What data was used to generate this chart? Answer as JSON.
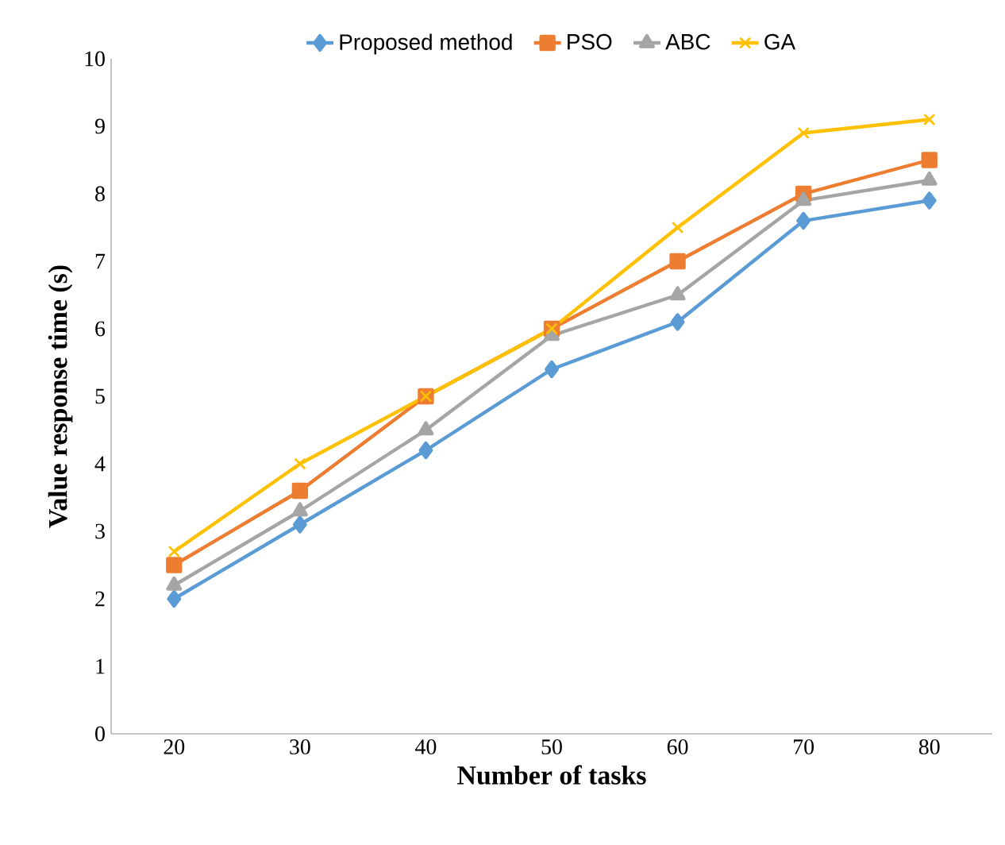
{
  "chart_data": {
    "type": "line",
    "xlabel": "Number of tasks",
    "ylabel": "Value response time (s)",
    "categories": [
      "20",
      "30",
      "40",
      "50",
      "60",
      "70",
      "80"
    ],
    "series": [
      {
        "name": "Proposed method",
        "color": "#5b9bd5",
        "marker": "diamond",
        "values": [
          2.0,
          3.1,
          4.2,
          5.4,
          6.1,
          7.6,
          7.9
        ]
      },
      {
        "name": "PSO",
        "color": "#ed7d31",
        "marker": "square",
        "values": [
          2.5,
          3.6,
          5.0,
          6.0,
          7.0,
          8.0,
          8.5
        ]
      },
      {
        "name": "ABC",
        "color": "#a5a5a5",
        "marker": "triangle",
        "values": [
          2.2,
          3.3,
          4.5,
          5.9,
          6.5,
          7.9,
          8.2
        ]
      },
      {
        "name": "GA",
        "color": "#ffc000",
        "marker": "cross",
        "values": [
          2.7,
          4.0,
          5.0,
          6.0,
          7.5,
          8.9,
          9.1
        ]
      }
    ],
    "ylim": [
      0,
      10
    ],
    "yticks": [
      0,
      1,
      2,
      3,
      4,
      5,
      6,
      7,
      8,
      9,
      10
    ],
    "grid": false,
    "legend": "top",
    "line_style": "solid"
  }
}
